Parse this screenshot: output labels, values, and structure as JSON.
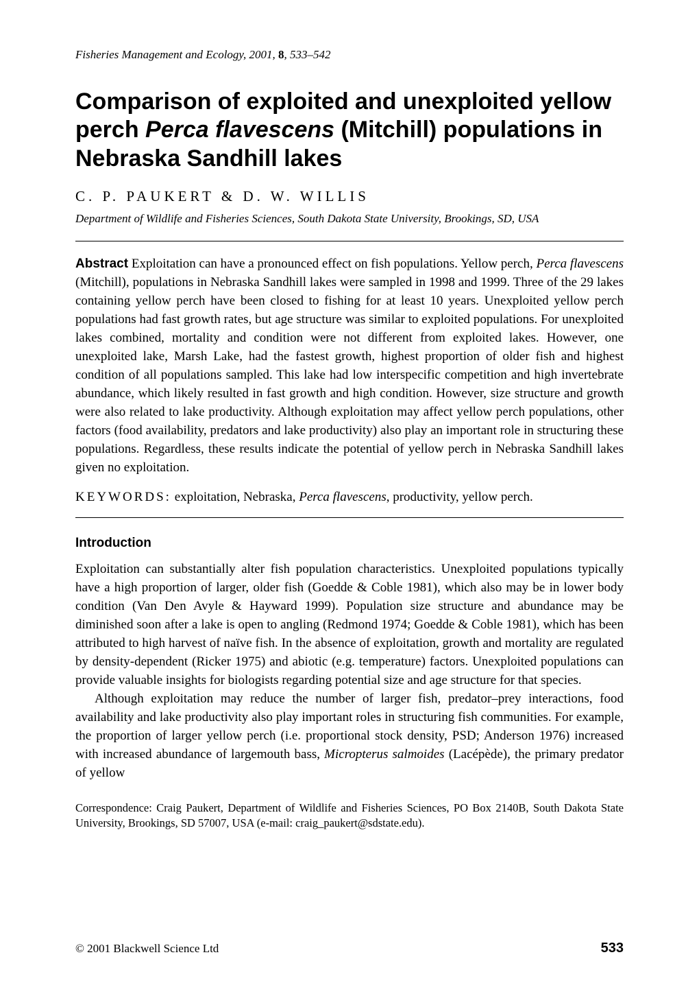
{
  "running_head": {
    "journal": "Fisheries Management and Ecology",
    "year": "2001",
    "volume": "8",
    "pages": "533–542"
  },
  "title": {
    "pre": "Comparison of exploited and unexploited yellow perch ",
    "species": "Perca flavescens",
    "post": " (Mitchill) populations in Nebraska Sandhill lakes"
  },
  "authors": "C. P. PAUKERT & D. W. WILLIS",
  "affiliation": "Department of Wildlife and Fisheries Sciences, South Dakota State University, Brookings, SD, USA",
  "abstract": {
    "label": "Abstract",
    "text_pre": "  Exploitation can have a pronounced effect on fish populations. Yellow perch, ",
    "species": "Perca flavescens",
    "text_post": " (Mitchill), populations in Nebraska Sandhill lakes were sampled in 1998 and 1999. Three of the 29 lakes containing yellow perch have been closed to fishing for at least 10 years. Unexploited yellow perch populations had fast growth rates, but age structure was similar to exploited populations. For unexploited lakes combined, mortality and condition were not different from exploited lakes. However, one unexploited lake, Marsh Lake, had the fastest growth, highest proportion of older fish and highest condition of all populations sampled. This lake had low interspecific competition and high invertebrate abundance, which likely resulted in fast growth and high condition. However, size structure and growth were also related to lake productivity. Although exploitation may affect yellow perch populations, other factors (food availability, predators and lake productivity) also play an important role in structuring these populations. Regardless, these results indicate the potential of yellow perch in Nebraska Sandhill lakes given no exploitation."
  },
  "keywords": {
    "label": "KEYWORDS:",
    "text_pre": " exploitation, Nebraska, ",
    "species": "Perca flavescens",
    "text_post": ", productivity, yellow perch."
  },
  "section_heading": "Introduction",
  "para1": "Exploitation can substantially alter fish population characteristics. Unexploited populations typically have a high proportion of larger, older fish (Goedde & Coble 1981), which also may be in lower body condition (Van Den Avyle & Hayward 1999). Population size structure and abundance may be diminished soon after a lake is open to angling (Redmond 1974; Goedde & Coble 1981), which has been attributed to high harvest of naïve fish. In the absence of exploitation, growth and mortality are regulated by density-dependent (Ricker 1975) and abiotic (e.g. temperature) factors. Unexploited populations can provide valuable insights for biologists regarding potential size and age structure for that species.",
  "para2": {
    "pre": "Although exploitation may reduce the number of larger fish, predator–prey interactions, food availability and lake productivity also play important roles in structuring fish communities. For example, the proportion of larger yellow perch (i.e. proportional stock density, PSD; Anderson 1976) increased with increased abundance of largemouth bass, ",
    "species": "Micropterus salmoides",
    "post": " (Lacépède), the primary predator of yellow"
  },
  "correspondence": "Correspondence: Craig Paukert, Department of Wildlife and Fisheries Sciences, PO Box 2140B, South Dakota State University, Brookings, SD 57007, USA (e-mail: craig_paukert@sdstate.edu).",
  "footer": {
    "copyright": "© 2001 Blackwell Science Ltd",
    "page": "533"
  }
}
